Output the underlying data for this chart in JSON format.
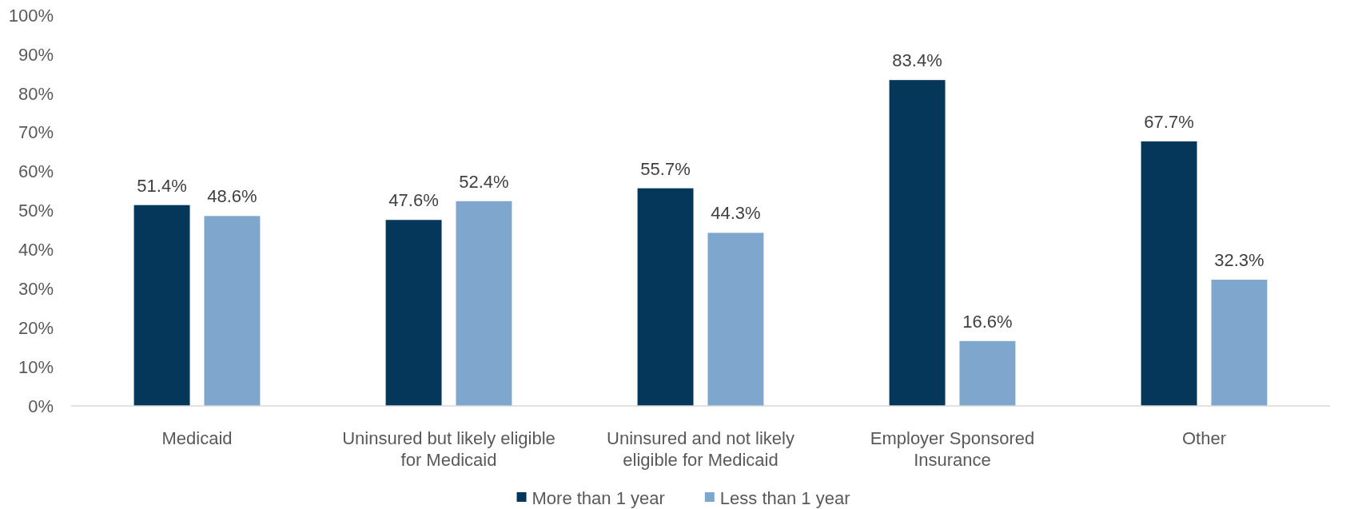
{
  "chart_data": {
    "type": "bar",
    "categories": [
      "Medicaid",
      "Uninsured but likely eligible for Medicaid",
      "Uninsured and not likely eligible for Medicaid",
      "Employer Sponsored Insurance",
      "Other"
    ],
    "series": [
      {
        "name": "More than 1 year",
        "color": "#04375a",
        "values": [
          51.4,
          47.6,
          55.7,
          83.4,
          67.7
        ],
        "value_labels": [
          "51.4%",
          "47.6%",
          "55.7%",
          "83.4%",
          "67.7%"
        ]
      },
      {
        "name": "Less than 1 year",
        "color": "#7fa6cc",
        "values": [
          48.6,
          52.4,
          44.3,
          16.6,
          32.3
        ],
        "value_labels": [
          "48.6%",
          "52.4%",
          "44.3%",
          "16.6%",
          "32.3%"
        ]
      }
    ],
    "ylim": [
      0,
      100
    ],
    "yticks": [
      {
        "value": 0,
        "label": "0%"
      },
      {
        "value": 10,
        "label": "10%"
      },
      {
        "value": 20,
        "label": "20%"
      },
      {
        "value": 30,
        "label": "30%"
      },
      {
        "value": 40,
        "label": "40%"
      },
      {
        "value": 50,
        "label": "50%"
      },
      {
        "value": 60,
        "label": "60%"
      },
      {
        "value": 70,
        "label": "70%"
      },
      {
        "value": 80,
        "label": "80%"
      },
      {
        "value": 90,
        "label": "90%"
      },
      {
        "value": 100,
        "label": "100%"
      }
    ],
    "legend": "bottom"
  }
}
